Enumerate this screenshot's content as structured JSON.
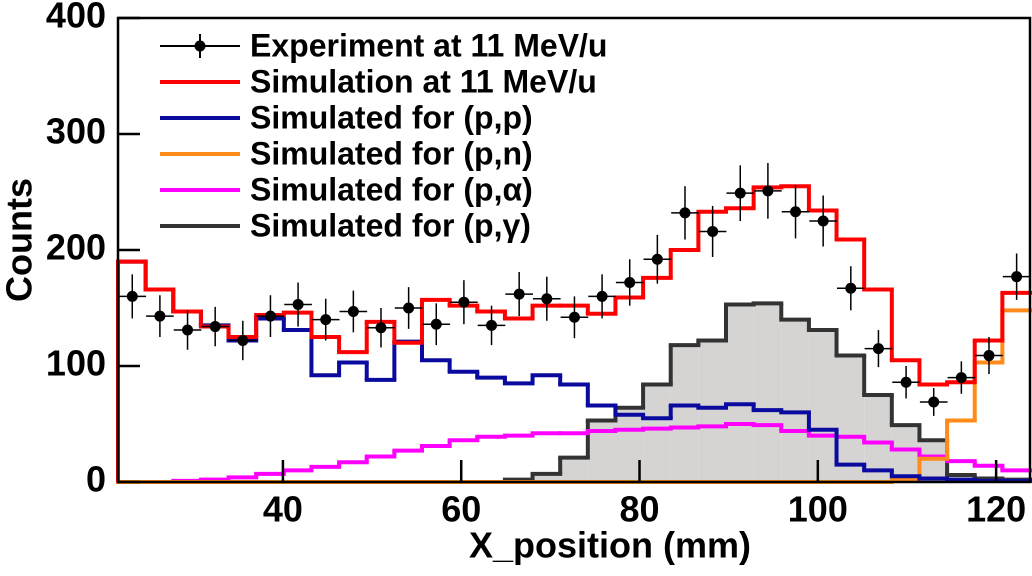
{
  "chart_data": {
    "type": "histogram",
    "xlabel": "X_position  (mm)",
    "ylabel": "Counts",
    "xlim": [
      21.5,
      123.8
    ],
    "ylim": [
      0,
      400
    ],
    "xticks": [
      40,
      60,
      80,
      100,
      120
    ],
    "yticks": [
      0,
      100,
      200,
      300,
      400
    ],
    "legend": "upper left",
    "bins": [
      21.5,
      24.6,
      27.7,
      30.8,
      33.9,
      37,
      40.1,
      43.2,
      46.3,
      49.4,
      52.5,
      55.6,
      58.7,
      61.8,
      64.9,
      68,
      71.1,
      74.2,
      77.3,
      80.4,
      83.5,
      86.6,
      89.7,
      92.8,
      95.9,
      99,
      102.1,
      105.2,
      108.3,
      111.4,
      114.5,
      117.6,
      120.7,
      123.8
    ],
    "series": [
      {
        "name": "Experiment at 11 MeV/u",
        "color": "#000000",
        "kind": "errorbar",
        "x": [
          23.1,
          26.2,
          29.3,
          32.4,
          35.5,
          38.6,
          41.7,
          44.8,
          47.9,
          51,
          54.1,
          57.2,
          60.3,
          63.4,
          66.5,
          69.6,
          72.7,
          75.8,
          78.9,
          82,
          85.1,
          88.2,
          91.3,
          94.4,
          97.5,
          100.6,
          103.7,
          106.8,
          109.9,
          113,
          116.1,
          119.2,
          122.3
        ],
        "values": [
          160,
          143,
          131,
          134,
          122,
          143,
          153,
          140,
          147,
          133,
          150,
          136,
          155,
          135,
          162,
          158,
          142,
          160,
          172,
          192,
          232,
          216,
          249,
          251,
          233,
          225,
          167,
          115,
          86,
          69,
          90,
          109,
          177
        ],
        "errors": [
          19,
          18,
          17,
          17,
          17,
          18,
          19,
          18,
          18,
          17,
          18,
          18,
          19,
          17,
          19,
          19,
          18,
          19,
          20,
          21,
          23,
          22,
          24,
          24,
          23,
          22,
          19,
          16,
          14,
          12,
          14,
          16,
          20
        ],
        "xerr": 1.55
      },
      {
        "name": "Simulation at 11 MeV/u",
        "color": "#ff0000",
        "values": [
          190,
          166,
          147,
          134,
          125,
          144,
          146,
          125,
          112,
          138,
          120,
          157,
          152,
          147,
          141,
          152,
          152,
          145,
          159,
          176,
          200,
          233,
          236,
          254,
          255,
          234,
          209,
          166,
          105,
          84,
          86,
          122,
          163
        ]
      },
      {
        "name": "Simulated for (p,p)",
        "color": "#0a0a9e",
        "values": [
          190,
          166,
          147,
          135,
          122,
          141,
          131,
          92,
          103,
          88,
          121,
          105,
          95,
          90,
          85,
          92,
          84,
          66,
          58,
          55,
          66,
          64,
          67,
          62,
          60,
          45,
          15,
          10,
          5,
          3,
          2,
          1,
          1
        ]
      },
      {
        "name": "Simulated for (p,n)",
        "color": "#ff8c1a",
        "values": [
          0,
          0,
          0,
          0,
          0,
          0,
          0,
          0,
          0,
          0,
          0,
          0,
          0,
          0,
          0,
          0,
          0,
          0,
          0,
          0,
          0,
          0,
          0,
          0,
          0,
          0,
          0,
          0,
          2,
          20,
          53,
          103,
          148
        ]
      },
      {
        "name": "Simulated for (p,α)",
        "color": "#ff00ff",
        "values": [
          0,
          0,
          1,
          2,
          4,
          7,
          10,
          13,
          17,
          22,
          27,
          31,
          36,
          39,
          40,
          42,
          42,
          44,
          45,
          46,
          47,
          48,
          50,
          49,
          44,
          40,
          39,
          34,
          28,
          22,
          18,
          14,
          10
        ]
      },
      {
        "name": "Simulated for (p,γ)",
        "color": "#333333",
        "fill": "#d6d3d3",
        "values": [
          0,
          0,
          0,
          0,
          0,
          0,
          0,
          0,
          0,
          0,
          0,
          0,
          0,
          0,
          2,
          7,
          21,
          53,
          64,
          84,
          118,
          122,
          153,
          154,
          140,
          131,
          109,
          75,
          49,
          36,
          6,
          3,
          2
        ]
      }
    ]
  }
}
